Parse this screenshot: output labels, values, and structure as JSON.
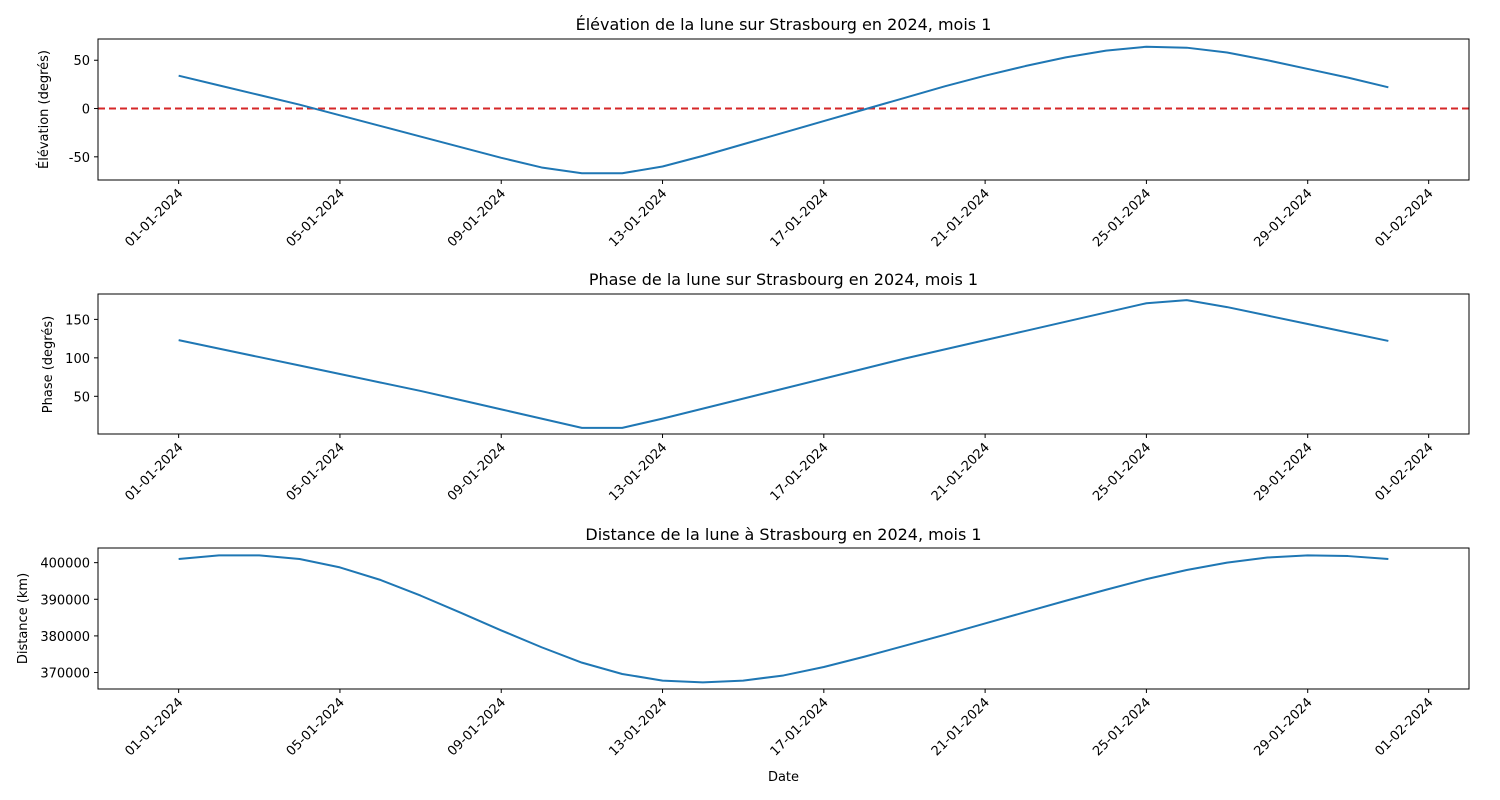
{
  "figure": {
    "xlabel": "Date"
  },
  "chart_data": [
    {
      "type": "line",
      "title": "Élévation de la lune sur Strasbourg en 2024, mois 1",
      "xlabel": "",
      "ylabel": "Élévation (degrés)",
      "xlim": [
        "2023-12-30",
        "2024-02-02"
      ],
      "ylim": [
        -74,
        72
      ],
      "yticks": [
        -50,
        0,
        50
      ],
      "xticks": [
        "2024-01-01",
        "2024-01-05",
        "2024-01-09",
        "2024-01-13",
        "2024-01-17",
        "2024-01-21",
        "2024-01-25",
        "2024-01-29",
        "2024-02-01"
      ],
      "xtick_labels": [
        "01-01-2024",
        "05-01-2024",
        "09-01-2024",
        "13-01-2024",
        "17-01-2024",
        "21-01-2024",
        "25-01-2024",
        "29-01-2024",
        "01-02-2024"
      ],
      "color": "#1f77b4",
      "x": [
        "2024-01-01",
        "2024-01-02",
        "2024-01-03",
        "2024-01-04",
        "2024-01-05",
        "2024-01-06",
        "2024-01-07",
        "2024-01-08",
        "2024-01-09",
        "2024-01-10",
        "2024-01-11",
        "2024-01-12",
        "2024-01-13",
        "2024-01-14",
        "2024-01-15",
        "2024-01-16",
        "2024-01-17",
        "2024-01-18",
        "2024-01-19",
        "2024-01-20",
        "2024-01-21",
        "2024-01-22",
        "2024-01-23",
        "2024-01-24",
        "2024-01-25",
        "2024-01-26",
        "2024-01-27",
        "2024-01-28",
        "2024-01-29",
        "2024-01-30",
        "2024-01-31"
      ],
      "y": [
        34,
        24,
        14,
        4,
        -7,
        -18,
        -29,
        -40,
        -51,
        -61,
        -67,
        -67,
        -60,
        -49,
        -37,
        -25,
        -13,
        -1,
        11,
        23,
        34,
        44,
        53,
        60,
        64,
        63,
        58,
        50,
        41,
        32,
        22
      ],
      "reference_line": {
        "y": 0,
        "color": "#d62728",
        "style": "dashed"
      }
    },
    {
      "type": "line",
      "title": "Phase de la lune sur Strasbourg en 2024, mois 1",
      "xlabel": "",
      "ylabel": "Phase (degrés)",
      "xlim": [
        "2023-12-30",
        "2024-02-02"
      ],
      "ylim": [
        1,
        183
      ],
      "yticks": [
        50,
        100,
        150
      ],
      "xticks": [
        "2024-01-01",
        "2024-01-05",
        "2024-01-09",
        "2024-01-13",
        "2024-01-17",
        "2024-01-21",
        "2024-01-25",
        "2024-01-29",
        "2024-02-01"
      ],
      "xtick_labels": [
        "01-01-2024",
        "05-01-2024",
        "09-01-2024",
        "13-01-2024",
        "17-01-2024",
        "21-01-2024",
        "25-01-2024",
        "29-01-2024",
        "01-02-2024"
      ],
      "color": "#1f77b4",
      "x": [
        "2024-01-01",
        "2024-01-02",
        "2024-01-03",
        "2024-01-04",
        "2024-01-05",
        "2024-01-06",
        "2024-01-07",
        "2024-01-08",
        "2024-01-09",
        "2024-01-10",
        "2024-01-11",
        "2024-01-12",
        "2024-01-13",
        "2024-01-14",
        "2024-01-15",
        "2024-01-16",
        "2024-01-17",
        "2024-01-18",
        "2024-01-19",
        "2024-01-20",
        "2024-01-21",
        "2024-01-22",
        "2024-01-23",
        "2024-01-24",
        "2024-01-25",
        "2024-01-26",
        "2024-01-27",
        "2024-01-28",
        "2024-01-29",
        "2024-01-30",
        "2024-01-31"
      ],
      "y": [
        123,
        112,
        101,
        90,
        79,
        68,
        57,
        45,
        33,
        21,
        9,
        9,
        21,
        34,
        47,
        60,
        73,
        86,
        99,
        111,
        123,
        135,
        147,
        159,
        171,
        175,
        166,
        155,
        144,
        133,
        122
      ]
    },
    {
      "type": "line",
      "title": "Distance de la lune à Strasbourg en 2024, mois 1",
      "xlabel": "Date",
      "ylabel": "Distance (km)",
      "xlim": [
        "2023-12-30",
        "2024-02-02"
      ],
      "ylim": [
        365500,
        404000
      ],
      "yticks": [
        370000,
        380000,
        390000,
        400000
      ],
      "xticks": [
        "2024-01-01",
        "2024-01-05",
        "2024-01-09",
        "2024-01-13",
        "2024-01-17",
        "2024-01-21",
        "2024-01-25",
        "2024-01-29",
        "2024-02-01"
      ],
      "xtick_labels": [
        "01-01-2024",
        "05-01-2024",
        "09-01-2024",
        "13-01-2024",
        "17-01-2024",
        "21-01-2024",
        "25-01-2024",
        "29-01-2024",
        "01-02-2024"
      ],
      "color": "#1f77b4",
      "x": [
        "2024-01-01",
        "2024-01-02",
        "2024-01-03",
        "2024-01-04",
        "2024-01-05",
        "2024-01-06",
        "2024-01-07",
        "2024-01-08",
        "2024-01-09",
        "2024-01-10",
        "2024-01-11",
        "2024-01-12",
        "2024-01-13",
        "2024-01-14",
        "2024-01-15",
        "2024-01-16",
        "2024-01-17",
        "2024-01-18",
        "2024-01-19",
        "2024-01-20",
        "2024-01-21",
        "2024-01-22",
        "2024-01-23",
        "2024-01-24",
        "2024-01-25",
        "2024-01-26",
        "2024-01-27",
        "2024-01-28",
        "2024-01-29",
        "2024-01-30",
        "2024-01-31"
      ],
      "y": [
        401000,
        402000,
        402000,
        401000,
        398700,
        395300,
        391000,
        386300,
        381500,
        376900,
        372700,
        369600,
        367800,
        367300,
        367800,
        369200,
        371500,
        374300,
        377300,
        380300,
        383400,
        386500,
        389600,
        392600,
        395500,
        398000,
        400000,
        401400,
        402000,
        401800,
        401000
      ]
    }
  ]
}
